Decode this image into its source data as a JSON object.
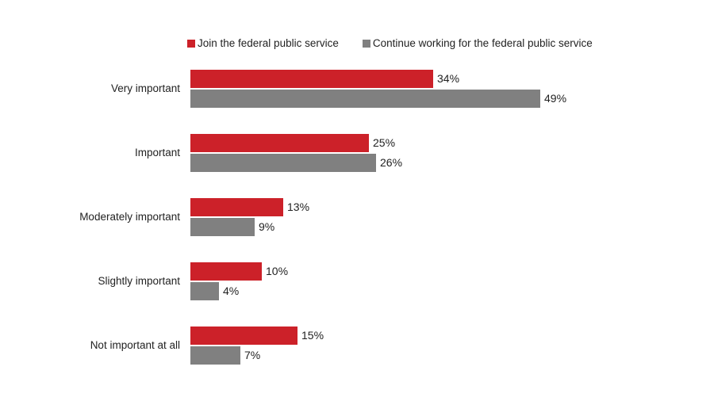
{
  "chart_data": {
    "type": "bar",
    "orientation": "horizontal",
    "categories": [
      "Very important",
      "Important",
      "Moderately important",
      "Slightly important",
      "Not important at all"
    ],
    "series": [
      {
        "name": "Join the federal public service",
        "color": "#cc2129",
        "values": [
          34,
          25,
          13,
          10,
          15
        ],
        "labels": [
          "34%",
          "25%",
          "13%",
          "10%",
          "15%"
        ]
      },
      {
        "name": "Continue working for the federal public service",
        "color": "#808080",
        "values": [
          49,
          26,
          9,
          4,
          7
        ],
        "labels": [
          "49%",
          "26%",
          "9%",
          "4%",
          "7%"
        ]
      }
    ],
    "unit": "%",
    "legend": "top",
    "grid": false,
    "xlim": [
      0,
      100
    ]
  }
}
